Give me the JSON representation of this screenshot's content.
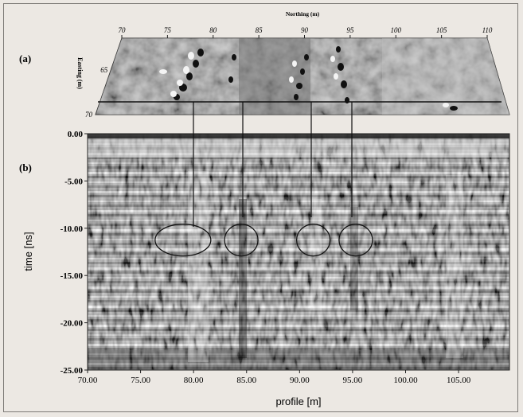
{
  "panel_labels": {
    "a": "(a)",
    "b": "(b)"
  },
  "top_panel": {
    "x_axis_title": "Northing (m)",
    "x_ticks": [
      70,
      75,
      80,
      85,
      90,
      95,
      100,
      105,
      110
    ],
    "y_axis_title": "Easting (m)",
    "y_ticks": [
      65,
      70
    ]
  },
  "chart_data": {
    "type": "heatmap",
    "title": "",
    "xlabel": "profile [m]",
    "ylabel": "time [ns]",
    "xlim": [
      70.0,
      109.8
    ],
    "ylim": [
      -25.0,
      0.0
    ],
    "x_ticks": [
      "70.00",
      "75.00",
      "80.00",
      "85.00",
      "90.00",
      "95.00",
      "100.00",
      "105.00"
    ],
    "y_ticks": [
      "0.00",
      "-5.00",
      "-10.00",
      "-15.00",
      "-20.00",
      "-25.00"
    ],
    "anomalies": [
      {
        "x": 79.0,
        "t": -11.0
      },
      {
        "x": 84.5,
        "t": -11.0
      },
      {
        "x": 91.3,
        "t": -11.0
      },
      {
        "x": 95.3,
        "t": -11.0
      }
    ]
  }
}
